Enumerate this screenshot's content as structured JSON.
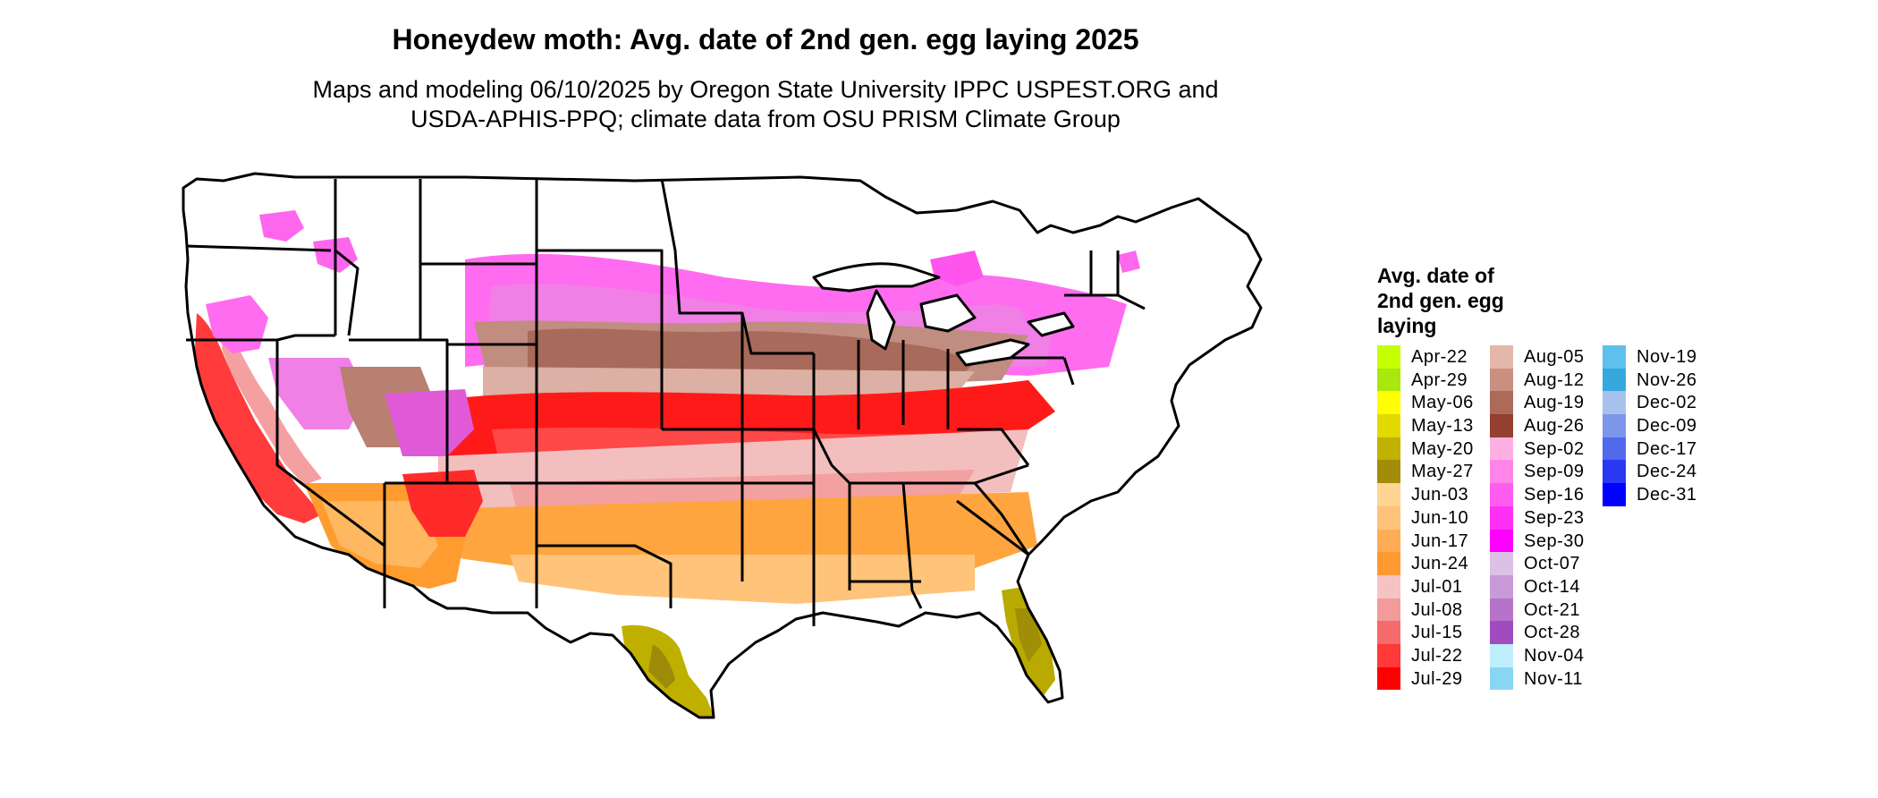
{
  "title": "Honeydew moth: Avg. date of 2nd gen. egg laying 2025",
  "subtitle_line1": "Maps and modeling 06/10/2025 by Oregon State University IPPC USPEST.ORG and",
  "subtitle_line2": "USDA-APHIS-PPQ; climate data from OSU PRISM Climate Group",
  "legend": {
    "title_line1": "Avg. date of",
    "title_line2": "2nd gen. egg",
    "title_line3": "laying",
    "columns": [
      [
        {
          "label": "Apr-22",
          "color": "#c6ff00"
        },
        {
          "label": "Apr-29",
          "color": "#a8e80c"
        },
        {
          "label": "May-06",
          "color": "#ffff00"
        },
        {
          "label": "May-13",
          "color": "#e1d900"
        },
        {
          "label": "May-20",
          "color": "#bfb200"
        },
        {
          "label": "May-27",
          "color": "#a38c08"
        },
        {
          "label": "Jun-03",
          "color": "#ffd591"
        },
        {
          "label": "Jun-10",
          "color": "#ffc27a"
        },
        {
          "label": "Jun-17",
          "color": "#ffad55"
        },
        {
          "label": "Jun-24",
          "color": "#ff9a30"
        },
        {
          "label": "Jul-01",
          "color": "#f6c3c3"
        },
        {
          "label": "Jul-08",
          "color": "#f39a9a"
        },
        {
          "label": "Jul-15",
          "color": "#f56a6a"
        },
        {
          "label": "Jul-22",
          "color": "#ff3838"
        },
        {
          "label": "Jul-29",
          "color": "#ff0000"
        }
      ],
      [
        {
          "label": "Aug-05",
          "color": "#e3b8aa"
        },
        {
          "label": "Aug-12",
          "color": "#c98f80"
        },
        {
          "label": "Aug-19",
          "color": "#ad6a58"
        },
        {
          "label": "Aug-26",
          "color": "#934030"
        },
        {
          "label": "Sep-02",
          "color": "#ffb0e2"
        },
        {
          "label": "Sep-09",
          "color": "#ff85e8"
        },
        {
          "label": "Sep-16",
          "color": "#ff5cf0"
        },
        {
          "label": "Sep-23",
          "color": "#ff30f5"
        },
        {
          "label": "Sep-30",
          "color": "#ff00ff"
        },
        {
          "label": "Oct-07",
          "color": "#dcc0e6"
        },
        {
          "label": "Oct-14",
          "color": "#c99ad8"
        },
        {
          "label": "Oct-21",
          "color": "#b573cc"
        },
        {
          "label": "Oct-28",
          "color": "#a04cbf"
        },
        {
          "label": "Nov-04",
          "color": "#bfeefc"
        },
        {
          "label": "Nov-11",
          "color": "#89d6f2"
        }
      ],
      [
        {
          "label": "Nov-19",
          "color": "#5ec0ec"
        },
        {
          "label": "Nov-26",
          "color": "#35a8de"
        },
        {
          "label": "Dec-02",
          "color": "#a6c2ec"
        },
        {
          "label": "Dec-09",
          "color": "#7d96e9"
        },
        {
          "label": "Dec-17",
          "color": "#5269ee"
        },
        {
          "label": "Dec-24",
          "color": "#2a38f2"
        },
        {
          "label": "Dec-31",
          "color": "#0000ff"
        }
      ]
    ]
  }
}
